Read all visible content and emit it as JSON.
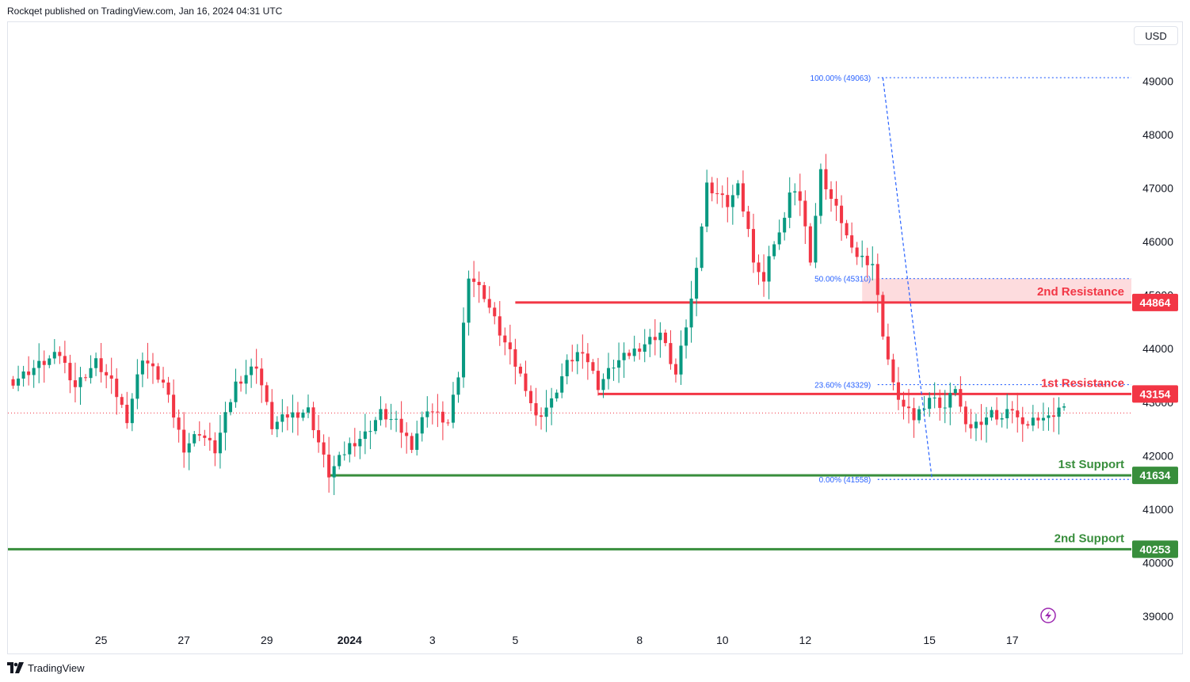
{
  "header": {
    "published": "Rockqet published on TradingView.com, Jan 16, 2024 04:31 UTC"
  },
  "currency_button": "USD",
  "footer": {
    "brand": "TradingView"
  },
  "colors": {
    "up": "#089981",
    "down": "#f23645",
    "support": "#388e3c",
    "resistance": "#f23645",
    "fib": "#2962ff",
    "zone": "#fcd3d6"
  },
  "chart_data": {
    "type": "candlestick",
    "ylim": [
      38750,
      50100
    ],
    "y_ticks": [
      39000,
      40000,
      41000,
      42000,
      43000,
      44000,
      45000,
      46000,
      47000,
      48000,
      49000
    ],
    "x_ticks": [
      {
        "label": "25",
        "idx": 17,
        "bold": false
      },
      {
        "label": "27",
        "idx": 33,
        "bold": false
      },
      {
        "label": "29",
        "idx": 49,
        "bold": false
      },
      {
        "label": "2024",
        "idx": 65,
        "bold": true
      },
      {
        "label": "3",
        "idx": 81,
        "bold": false
      },
      {
        "label": "5",
        "idx": 97,
        "bold": false
      },
      {
        "label": "8",
        "idx": 121,
        "bold": false
      },
      {
        "label": "10",
        "idx": 137,
        "bold": false
      },
      {
        "label": "12",
        "idx": 153,
        "bold": false
      },
      {
        "label": "15",
        "idx": 177,
        "bold": false
      },
      {
        "label": "17",
        "idx": 193,
        "bold": false
      }
    ],
    "x_range": [
      -1,
      216
    ],
    "anchors": [
      [
        0,
        43400
      ],
      [
        5,
        43700
      ],
      [
        9,
        43900
      ],
      [
        12,
        43300
      ],
      [
        16,
        43750
      ],
      [
        19,
        43350
      ],
      [
        22,
        42700
      ],
      [
        25,
        43850
      ],
      [
        29,
        43350
      ],
      [
        33,
        42150
      ],
      [
        36,
        42450
      ],
      [
        39,
        42100
      ],
      [
        43,
        43350
      ],
      [
        47,
        43700
      ],
      [
        50,
        42550
      ],
      [
        53,
        42750
      ],
      [
        57,
        42850
      ],
      [
        61,
        41650
      ],
      [
        65,
        42200
      ],
      [
        68,
        42400
      ],
      [
        71,
        42800
      ],
      [
        74,
        42600
      ],
      [
        77,
        42200
      ],
      [
        80,
        42900
      ],
      [
        84,
        42600
      ],
      [
        86,
        43500
      ],
      [
        88,
        45400
      ],
      [
        91,
        45000
      ],
      [
        94,
        44300
      ],
      [
        97,
        43700
      ],
      [
        99,
        43300
      ],
      [
        101,
        42700
      ],
      [
        104,
        43000
      ],
      [
        107,
        43700
      ],
      [
        110,
        44000
      ],
      [
        113,
        43300
      ],
      [
        116,
        43700
      ],
      [
        119,
        43900
      ],
      [
        122,
        44100
      ],
      [
        125,
        44300
      ],
      [
        128,
        43500
      ],
      [
        131,
        44900
      ],
      [
        133,
        46300
      ],
      [
        134,
        47050
      ],
      [
        136,
        46900
      ],
      [
        138,
        46700
      ],
      [
        140,
        47000
      ],
      [
        142,
        46200
      ],
      [
        143,
        45700
      ],
      [
        145,
        45200
      ],
      [
        146,
        45800
      ],
      [
        148,
        46100
      ],
      [
        150,
        46900
      ],
      [
        152,
        46800
      ],
      [
        154,
        45700
      ],
      [
        156,
        47300
      ],
      [
        158,
        46800
      ],
      [
        160,
        46400
      ],
      [
        162,
        45800
      ],
      [
        164,
        45700
      ],
      [
        166,
        45600
      ],
      [
        168,
        44300
      ],
      [
        170,
        43300
      ],
      [
        172,
        42900
      ],
      [
        174,
        42700
      ],
      [
        177,
        43100
      ],
      [
        180,
        42900
      ],
      [
        182,
        43300
      ],
      [
        184,
        42500
      ],
      [
        186,
        42600
      ],
      [
        189,
        42800
      ],
      [
        191,
        42700
      ],
      [
        193,
        42900
      ],
      [
        195,
        42500
      ],
      [
        196,
        42600
      ],
      [
        198,
        42750
      ],
      [
        200,
        42700
      ],
      [
        202,
        42900
      ],
      [
        203,
        42850
      ]
    ],
    "levels": [
      {
        "label": "2nd Resistance",
        "value": 44864,
        "tag": "44864",
        "kind": "resistance"
      },
      {
        "label": "1st Resistance",
        "value": 43154,
        "tag": "43154",
        "kind": "resistance"
      },
      {
        "label": "1st Support",
        "value": 41634,
        "tag": "41634",
        "kind": "support"
      },
      {
        "label": "2nd Support",
        "value": 40253,
        "tag": "40253",
        "kind": "support"
      }
    ],
    "fib": [
      {
        "label": "100.00% (49063)",
        "value": 49063
      },
      {
        "label": "50.00% (45310)",
        "value": 45310
      },
      {
        "label": "23.60% (43329)",
        "value": 43329
      },
      {
        "label": "0.00% (41558)",
        "value": 41558
      }
    ],
    "zone": [
      44864,
      45310
    ],
    "current_price_line": 42800
  }
}
